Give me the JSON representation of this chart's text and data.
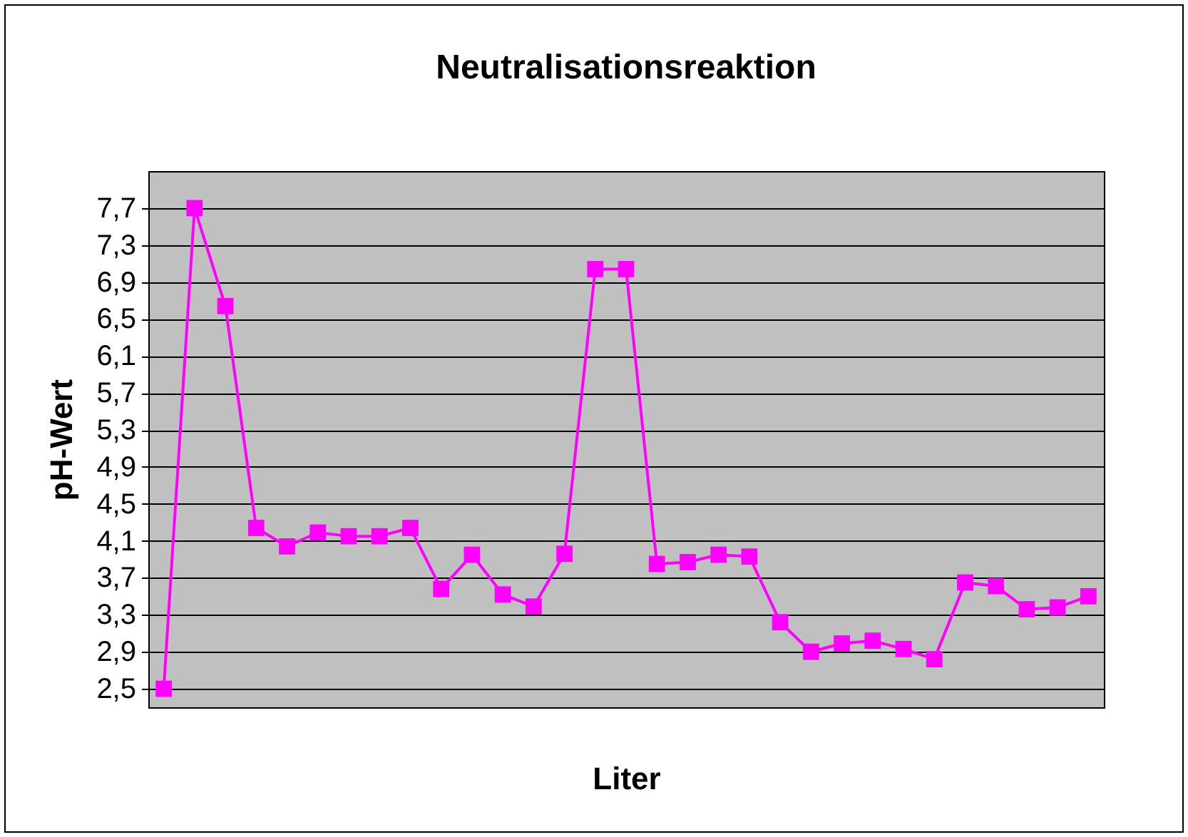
{
  "chart_data": {
    "type": "line",
    "title": "Neutralisationsreaktion",
    "xlabel": "Liter",
    "ylabel": "pH-Wert",
    "categories": [
      null,
      null,
      null,
      null,
      null,
      null,
      null,
      null,
      null,
      null,
      null,
      null,
      null,
      null,
      null,
      null,
      null,
      null,
      null,
      null,
      null,
      null,
      null,
      null,
      null,
      null,
      null,
      null,
      null,
      null,
      null
    ],
    "series": [
      {
        "color": "#ff00ff",
        "values": [
          2.5,
          7.7,
          6.64,
          4.24,
          4.04,
          4.19,
          4.15,
          4.15,
          4.24,
          3.58,
          3.95,
          3.52,
          3.39,
          3.96,
          7.04,
          7.04,
          3.85,
          3.87,
          3.95,
          3.93,
          3.22,
          2.9,
          2.99,
          3.02,
          2.93,
          2.82,
          3.65,
          3.61,
          3.36,
          3.38,
          3.5
        ]
      }
    ],
    "ylim": [
      2.3,
      8.1
    ],
    "yticks": [
      {
        "value": 2.5,
        "label": "2,5"
      },
      {
        "value": 2.9,
        "label": "2,9"
      },
      {
        "value": 3.3,
        "label": "3,3"
      },
      {
        "value": 3.7,
        "label": "3,7"
      },
      {
        "value": 4.1,
        "label": "4,1"
      },
      {
        "value": 4.5,
        "label": "4,5"
      },
      {
        "value": 4.9,
        "label": "4,9"
      },
      {
        "value": 5.3,
        "label": "5,3"
      },
      {
        "value": 5.7,
        "label": "5,7"
      },
      {
        "value": 6.1,
        "label": "6,1"
      },
      {
        "value": 6.5,
        "label": "6,5"
      },
      {
        "value": 6.9,
        "label": "6,9"
      },
      {
        "value": 7.3,
        "label": "7,3"
      },
      {
        "value": 7.7,
        "label": "7,7"
      }
    ],
    "grid": "y",
    "marker": "square",
    "line_style": "solid",
    "legend": false,
    "tick_labels": "y"
  }
}
